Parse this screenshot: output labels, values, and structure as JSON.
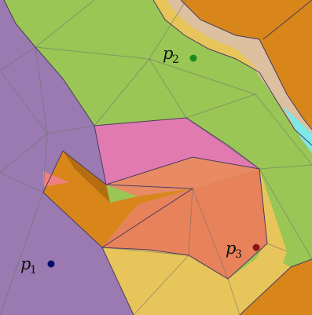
{
  "regions": [
    {
      "name": "green",
      "color": "#9ac655"
    },
    {
      "name": "purple",
      "color": "#9a7ab0"
    },
    {
      "name": "pink",
      "color": "#e07ab0"
    },
    {
      "name": "orange",
      "color": "#d8861a"
    },
    {
      "name": "salmon",
      "color": "#e88a64"
    },
    {
      "name": "yellow",
      "color": "#e8c55a"
    },
    {
      "name": "tan",
      "color": "#dcc0a0"
    },
    {
      "name": "cyan",
      "color": "#7de8e8"
    }
  ],
  "points": [
    {
      "id": "p1",
      "base": "p",
      "sub": "1",
      "color": "#0a0a6e"
    },
    {
      "id": "p2",
      "base": "p",
      "sub": "2",
      "color": "#1e8a1e"
    },
    {
      "id": "p3",
      "base": "p",
      "sub": "3",
      "color": "#8a1414"
    }
  ]
}
